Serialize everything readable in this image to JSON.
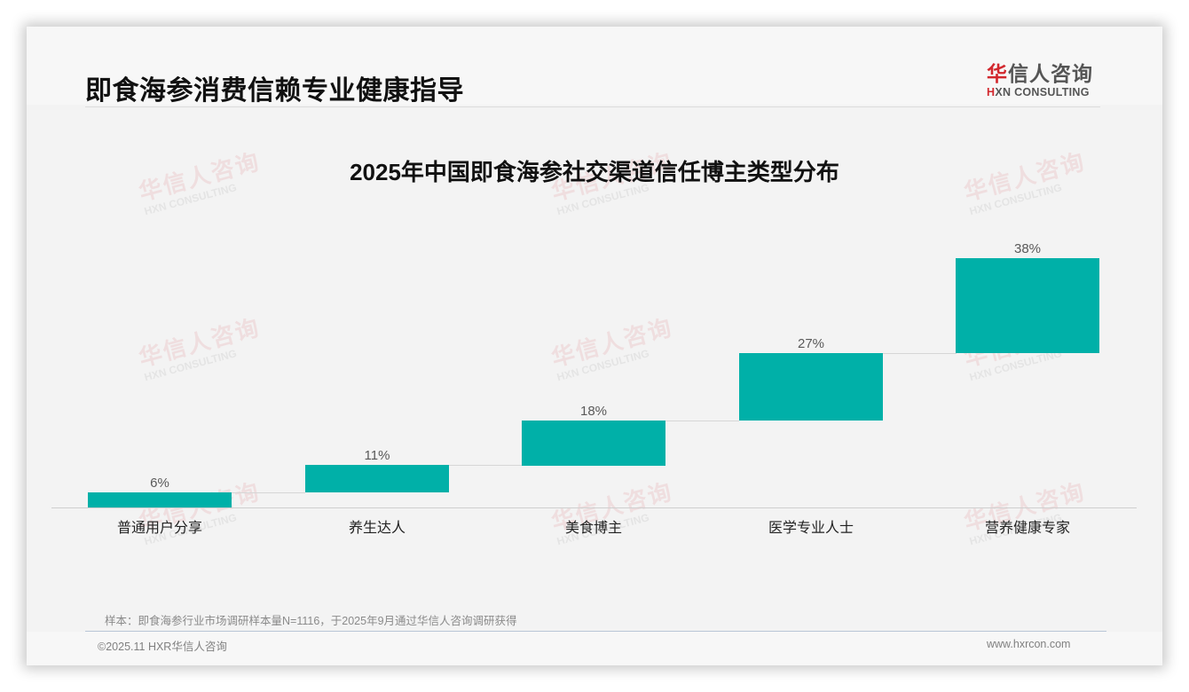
{
  "header": {
    "page_title": "即食海参消费信赖专业健康指导",
    "logo": {
      "cn_accent": "华",
      "cn_rest": "信人咨询",
      "en_accent": "H",
      "en_rest": "XN CONSULTING"
    }
  },
  "watermark": {
    "cn": "华信人咨询",
    "en": "HXN CONSULTING"
  },
  "chart_data": {
    "type": "bar",
    "subtype": "waterfall",
    "title": "2025年中国即食海参社交渠道信任博主类型分布",
    "xlabel": "",
    "ylabel": "",
    "categories": [
      "普通用户分享",
      "养生达人",
      "美食博主",
      "医学专业人士",
      "营养健康专家"
    ],
    "values": [
      6,
      11,
      18,
      27,
      38
    ],
    "value_labels": [
      "6%",
      "11%",
      "18%",
      "27%",
      "38%"
    ],
    "unit": "%",
    "ylim": [
      0,
      100
    ],
    "grid": false,
    "legend": "none",
    "bar_color": "#00b0a8"
  },
  "footer": {
    "source_note": "样本：即食海参行业市场调研样本量N=1116，于2025年9月通过华信人咨询调研获得",
    "copyright": "©2025.11 HXR华信人咨询",
    "website": "www.hxrcon.com"
  }
}
